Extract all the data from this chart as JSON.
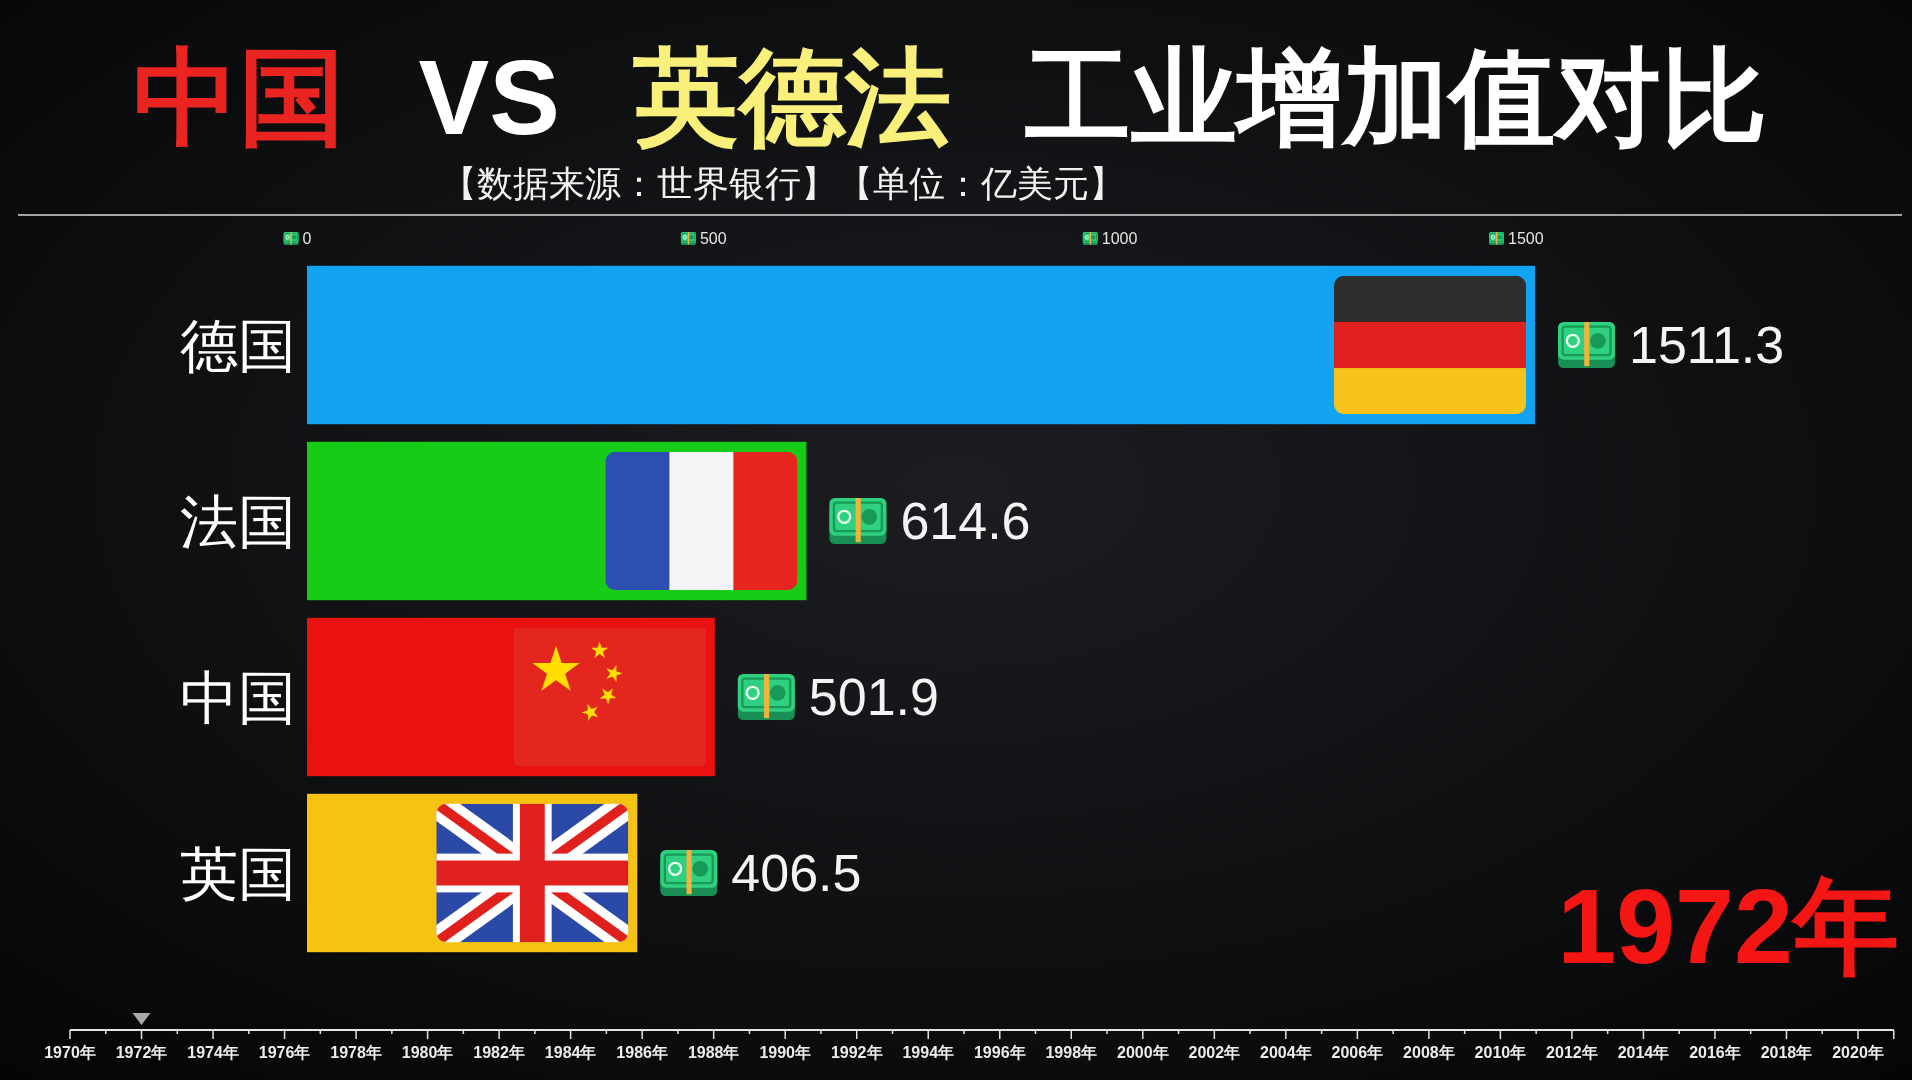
{
  "chart_data": {
    "type": "bar",
    "title": "中国 VS 英德法 工业增加值对比",
    "subtitle": "【数据来源：世界银行】【单位：亿美元】",
    "orientation": "horizontal",
    "categories": [
      "德国",
      "法国",
      "中国",
      "英国"
    ],
    "values": [
      1511.3,
      614.6,
      501.9,
      406.5
    ],
    "colors": [
      "#12a4f2",
      "#17cc17",
      "#ea1111",
      "#f7c312"
    ],
    "xlim": [
      0,
      1511.3
    ],
    "xticks": [
      0,
      500,
      1000,
      1500
    ],
    "data_labels": true,
    "annotations": [
      "1972年",
      "1970年",
      "1972年",
      "1974年",
      "1976年",
      "1978年",
      "1980年",
      "1982年",
      "1984年",
      "1986年",
      "1988年",
      "1990年",
      "1992年",
      "1994年",
      "1996年",
      "1998年",
      "2000年",
      "2002年",
      "2004年",
      "2006年",
      "2008年",
      "2010年",
      "2012年",
      "2014年",
      "2016年",
      "2018年",
      "2020年"
    ]
  }
}
